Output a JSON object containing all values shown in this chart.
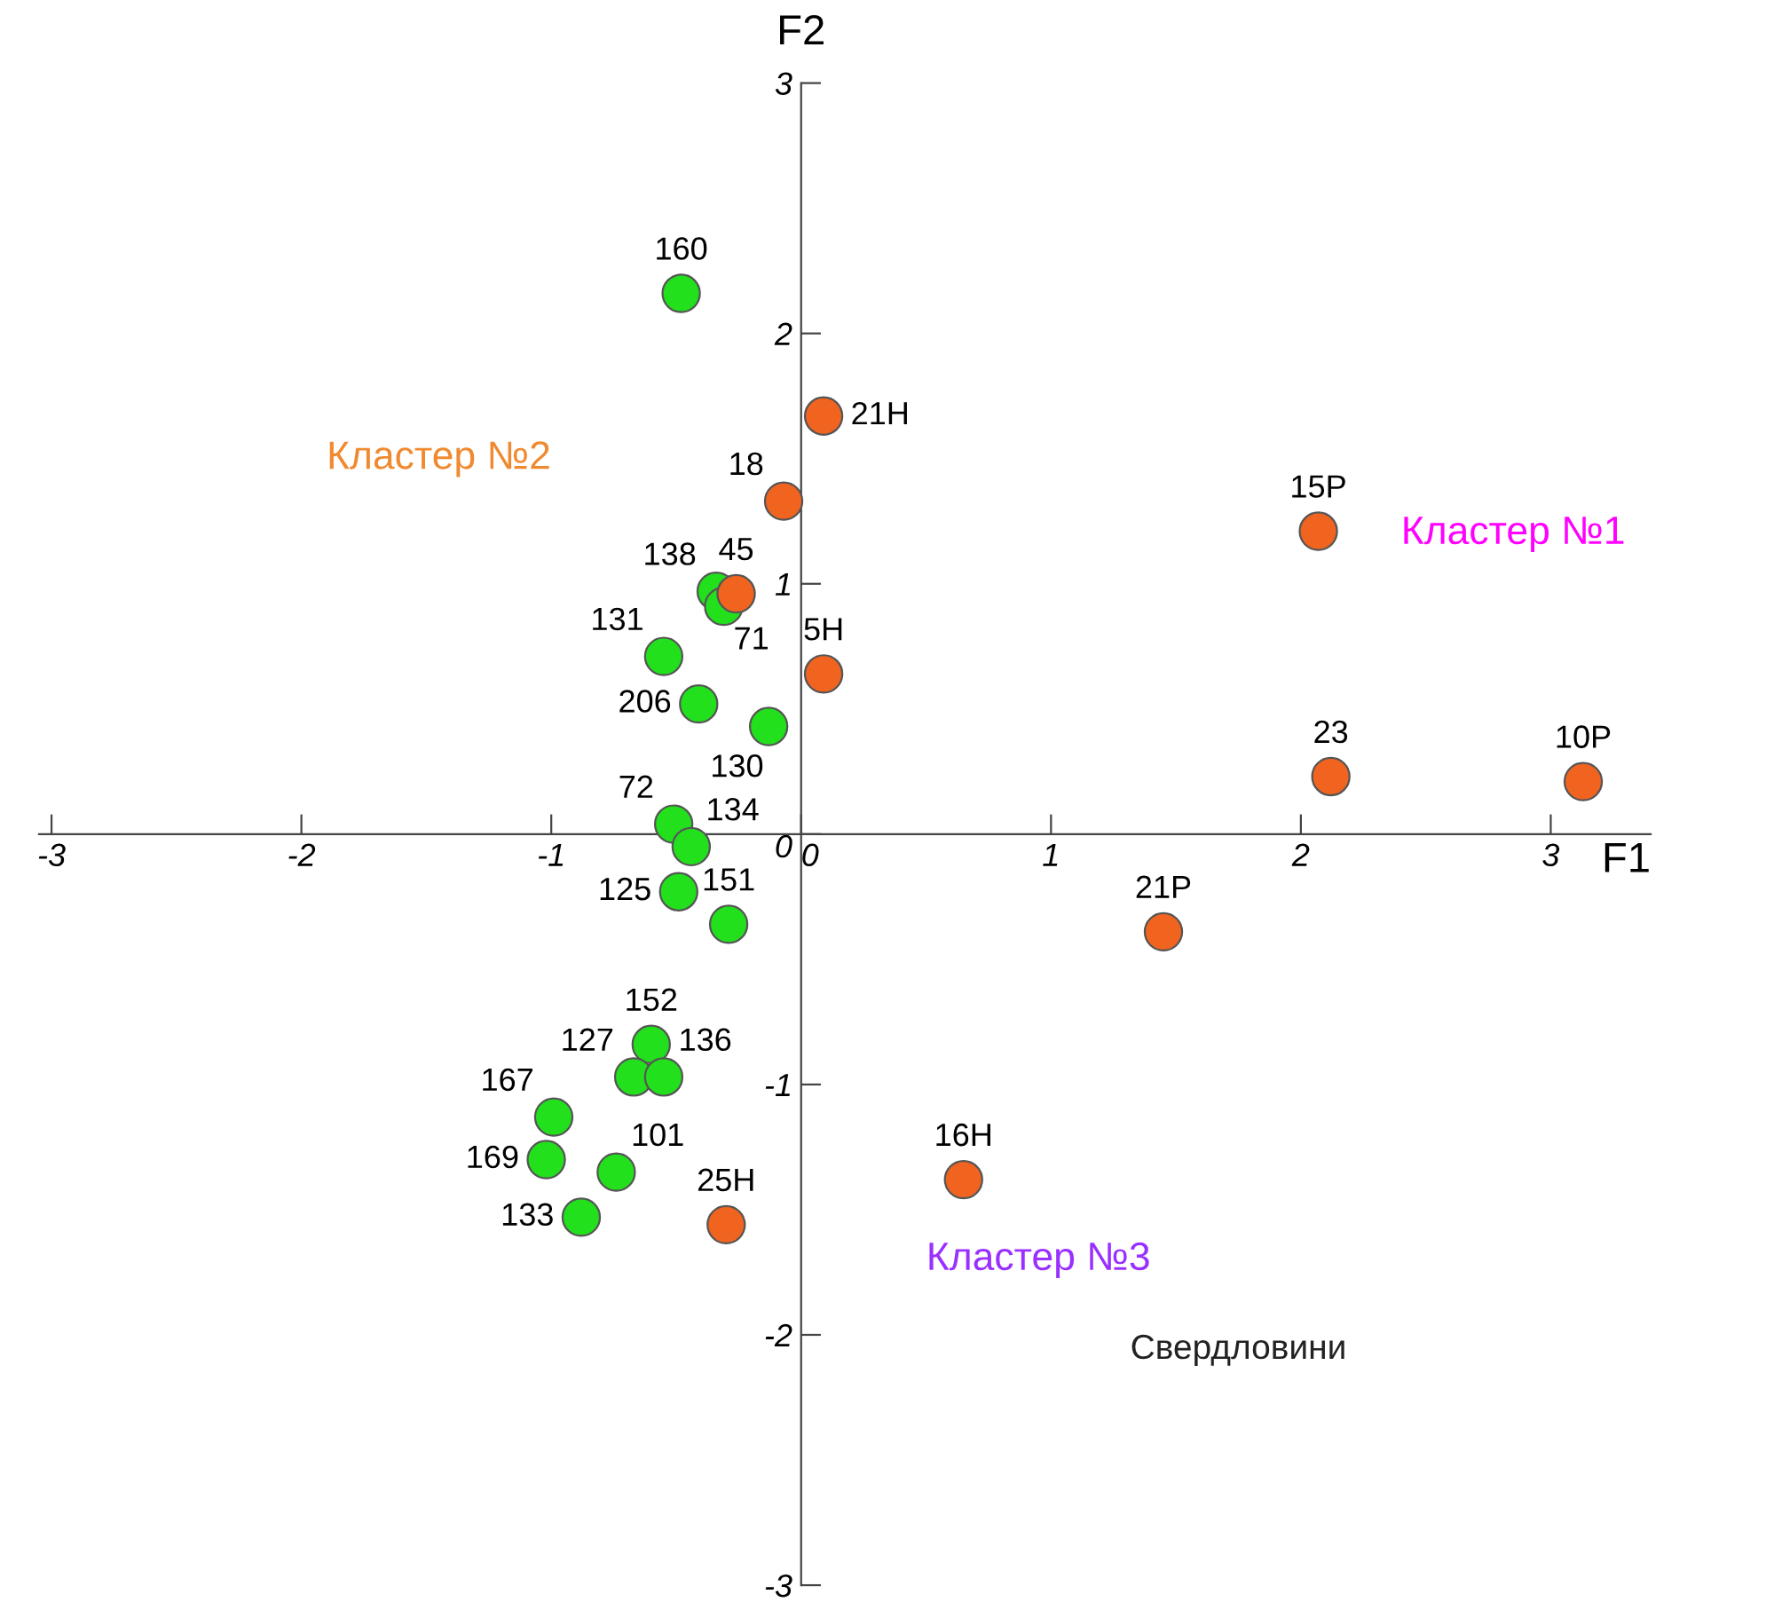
{
  "chart_data": {
    "type": "scatter",
    "xlabel": "F1",
    "ylabel": "F2",
    "xlim": [
      -3.05,
      3.4
    ],
    "ylim": [
      -3,
      3
    ],
    "xticks": [
      -3,
      -2,
      -1,
      0,
      1,
      2,
      3
    ],
    "yticks": [
      -3,
      -2,
      -1,
      0,
      1,
      2,
      3
    ],
    "grid": false,
    "legend": false,
    "marker": "circle",
    "annotations": [
      "Кластер №1",
      "Кластер №2",
      "Кластер №3",
      "Свердловини",
      {
        "text": "21Н",
        "x": 0.09,
        "y": 1.67
      },
      {
        "text": "18",
        "x": -0.07,
        "y": 1.33
      },
      {
        "text": "15Р",
        "x": 2.07,
        "y": 1.21
      },
      {
        "text": "45",
        "x": -0.26,
        "y": 0.96
      },
      {
        "text": "5Н",
        "x": 0.09,
        "y": 0.64
      },
      {
        "text": "23",
        "x": 2.12,
        "y": 0.23
      },
      {
        "text": "10Р",
        "x": 3.13,
        "y": 0.21
      },
      {
        "text": "21Р",
        "x": 1.45,
        "y": -0.39
      },
      {
        "text": "16Н",
        "x": 0.65,
        "y": -1.38
      },
      {
        "text": "25Н",
        "x": -0.3,
        "y": -1.56
      },
      {
        "text": "160",
        "x": -0.48,
        "y": 2.16
      },
      {
        "text": "138",
        "x": -0.34,
        "y": 0.97
      },
      {
        "text": "71",
        "x": -0.31,
        "y": 0.91
      },
      {
        "text": "131",
        "x": -0.55,
        "y": 0.71
      },
      {
        "text": "206",
        "x": -0.41,
        "y": 0.52
      },
      {
        "text": "130",
        "x": -0.13,
        "y": 0.43
      },
      {
        "text": "72",
        "x": -0.51,
        "y": 0.04
      },
      {
        "text": "134",
        "x": -0.44,
        "y": -0.05
      },
      {
        "text": "125",
        "x": -0.49,
        "y": -0.23
      },
      {
        "text": "151",
        "x": -0.29,
        "y": -0.36
      },
      {
        "text": "152",
        "x": -0.6,
        "y": -0.84
      },
      {
        "text": "127",
        "x": -0.67,
        "y": -0.97
      },
      {
        "text": "136",
        "x": -0.55,
        "y": -0.97
      },
      {
        "text": "167",
        "x": -0.99,
        "y": -1.13
      },
      {
        "text": "169",
        "x": -1.02,
        "y": -1.3
      },
      {
        "text": "101",
        "x": -0.74,
        "y": -1.35
      },
      {
        "text": "133",
        "x": -0.88,
        "y": -1.53
      }
    ],
    "series": [
      {
        "color": "#f06420",
        "x": [
          0.09,
          -0.07,
          2.07,
          -0.26,
          0.09,
          2.12,
          3.13,
          1.45,
          0.65,
          -0.3
        ],
        "values": [
          1.67,
          1.33,
          1.21,
          0.96,
          0.64,
          0.23,
          0.21,
          -0.39,
          -1.38,
          -1.56
        ]
      },
      {
        "color": "#22e01c",
        "x": [
          -0.48,
          -0.34,
          -0.31,
          -0.55,
          -0.41,
          -0.13,
          -0.51,
          -0.44,
          -0.49,
          -0.29,
          -0.6,
          -0.67,
          -0.55,
          -0.99,
          -1.02,
          -0.74,
          -0.88
        ],
        "values": [
          2.16,
          0.97,
          0.91,
          0.71,
          0.52,
          0.43,
          0.04,
          -0.05,
          -0.23,
          -0.36,
          -0.84,
          -0.97,
          -0.97,
          -1.13,
          -1.3,
          -1.35,
          -1.53
        ]
      }
    ]
  }
}
